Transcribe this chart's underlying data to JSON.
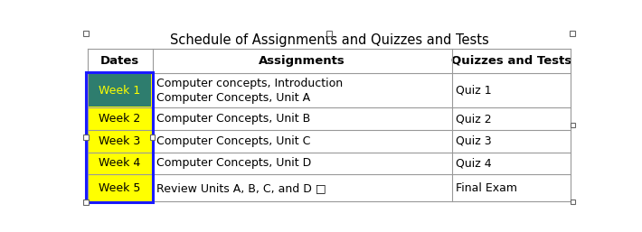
{
  "title": "Schedule of Assignments and Quizzes and Tests",
  "headers": [
    "Dates",
    "Assignments",
    "Quizzes and Tests"
  ],
  "rows": [
    [
      "Week 1",
      "Computer concepts, Introduction\nComputer Concepts, Unit A",
      "Quiz 1"
    ],
    [
      "Week 2",
      "Computer Concepts, Unit B",
      "Quiz 2"
    ],
    [
      "Week 3",
      "Computer Concepts, Unit C",
      "Quiz 3"
    ],
    [
      "Week 4",
      "Computer Concepts, Unit D",
      "Quiz 4"
    ],
    [
      "Week 5",
      "Review Units A, B, C, and D □",
      "Final Exam"
    ]
  ],
  "header_bg": "#ffffff",
  "header_text_color": "#000000",
  "dates_col_bg": "#ffff00",
  "dates_col_text": "#000000",
  "week1_dates_bg": "#2e7d6e",
  "week1_dates_text": "#ffff00",
  "week1_outer_bg": "#ffff00",
  "other_col_bg": "#ffffff",
  "other_col_text": "#000000",
  "selected_col_border": "#1a1aff",
  "grid_color": "#999999",
  "title_fontsize": 10.5,
  "cell_fontsize": 9,
  "header_fontsize": 9.5,
  "bg_color": "#ffffff",
  "handle_color": "#ffffff"
}
